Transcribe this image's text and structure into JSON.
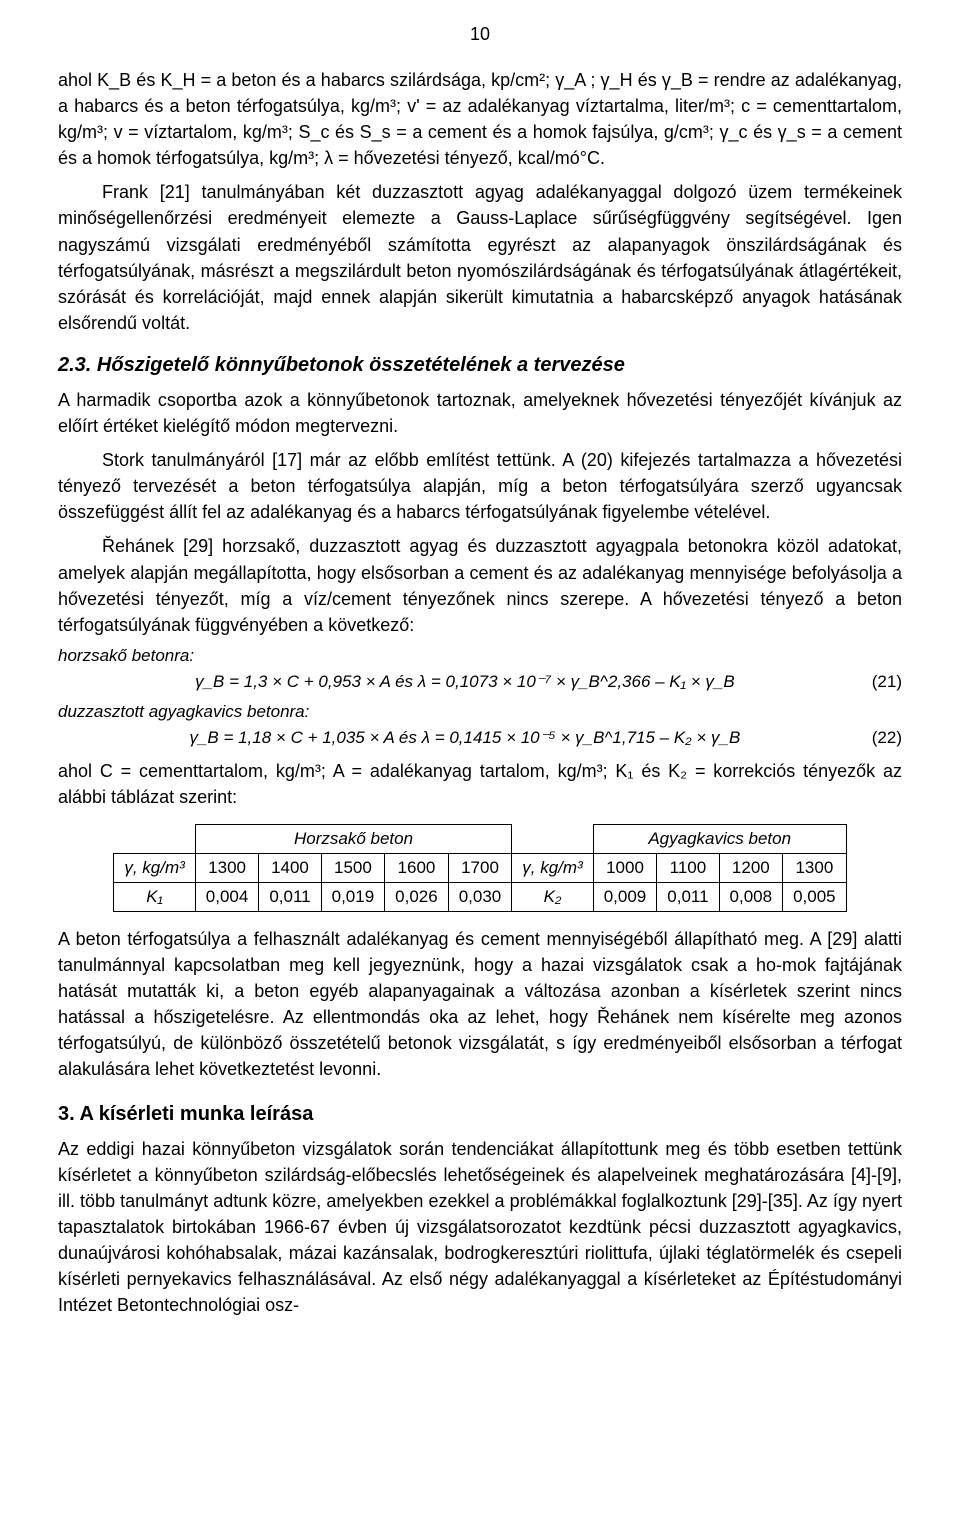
{
  "page_number": "10",
  "p1": "ahol K_B és K_H = a beton és a habarcs szilárdsága, kp/cm²; γ_A ; γ_H és γ_B = rendre az adalékanyag, a habarcs és a beton térfogatsúlya, kg/m³; v' = az adalékanyag víztartalma, liter/m³; c = cementtartalom, kg/m³; v = víztartalom, kg/m³; S_c és S_s = a cement és a homok fajsúlya, g/cm³; γ_c és γ_s = a cement és a homok térfogatsúlya, kg/m³; λ = hővezetési tényező, kcal/mó°C.",
  "p2": "Frank [21] tanulmányában két duzzasztott agyag adalékanyaggal dolgozó üzem termékeinek minőségellenőrzési eredményeit elemezte a Gauss-Laplace sűrűségfüggvény segítségével. Igen nagyszámú vizsgálati eredményéből számította egyrészt az alapanyagok önszilárdságának és térfogatsúlyának, másrészt a megszilárdult beton nyomószilárdságának és térfogatsúlyának átlagértékeit, szórását és korrelációját, majd ennek alapján sikerült kimutatnia a habarcsképző anyagok hatásának elsőrendű voltát.",
  "h_2_3": "2.3. Hőszigetelő könnyűbetonok összetételének a tervezése",
  "p3": "A harmadik csoportba azok a könnyűbetonok tartoznak, amelyeknek hővezetési tényezőjét kívánjuk az előírt értéket kielégítő módon megtervezni.",
  "p4": "Stork tanulmányáról [17] már az előbb említést tettünk. A (20) kifejezés tartalmazza a hővezetési tényező tervezését a beton térfogatsúlya alapján, míg a beton térfogatsúlyára szerző ugyancsak összefüggést állít fel az adalékanyag és a habarcs térfogatsúlyának figyelembe vételével.",
  "p5": "Řehánek [29] horzsakő, duzzasztott agyag és duzzasztott agyagpala betonokra közöl adatokat, amelyek alapján megállapította, hogy elsősorban a cement és az adalékanyag mennyisége befolyásolja a hővezetési tényezőt, míg a víz/cement tényezőnek nincs szerepe. A hővezetési tényező a beton térfogatsúlyának függvényében a következő:",
  "horzsako_label": "horzsakő betonra:",
  "eq21_body": "γ_B = 1,3 × C + 0,953 × A   és   λ = 0,1073 × 10⁻⁷ × γ_B^2,366 – K₁ × γ_B",
  "eq21_num": "(21)",
  "duzz_label": "duzzasztott agyagkavics betonra:",
  "eq22_body": "γ_B = 1,18 × C + 1,035 × A   és   λ = 0,1415 × 10⁻⁵ × γ_B^1,715 – K₂ × γ_B",
  "eq22_num": "(22)",
  "p6": "ahol C = cementtartalom, kg/m³; A = adalékanyag tartalom, kg/m³; K₁ és K₂ = korrekciós tényezők az alábbi táblázat szerint:",
  "table": {
    "left_header": "Horzsakő beton",
    "right_header": "Agyagkavics beton",
    "gamma_label": "γ, kg/m³",
    "k1_label": "K₁",
    "k2_label": "K₂",
    "left_gamma": [
      "1300",
      "1400",
      "1500",
      "1600",
      "1700"
    ],
    "left_k": [
      "0,004",
      "0,011",
      "0,019",
      "0,026",
      "0,030"
    ],
    "right_gamma": [
      "1000",
      "1100",
      "1200",
      "1300"
    ],
    "right_k": [
      "0,009",
      "0,011",
      "0,008",
      "0,005"
    ]
  },
  "p7": "A beton térfogatsúlya a felhasznált adalékanyag és cement mennyiségéből állapítható meg. A [29] alatti tanulmánnyal kapcsolatban meg kell jegyeznünk, hogy a hazai vizsgálatok csak a ho-mok fajtájának hatását mutatták ki, a beton egyéb alapanyagainak a változása azonban a kísérletek szerint nincs hatással a hőszigetelésre. Az ellentmondás oka az lehet, hogy Řehánek nem kísérelte meg azonos térfogatsúlyú, de különböző összetételű betonok vizsgálatát, s így eredményeiből elsősorban a térfogat alakulására lehet következtetést levonni.",
  "h_3": "3. A kísérleti munka leírása",
  "p8": "Az eddigi hazai könnyűbeton vizsgálatok során tendenciákat állapítottunk meg és több esetben tettünk kísérletet a könnyűbeton szilárdság-előbecslés lehetőségeinek és alapelveinek meghatározására [4]-[9], ill. több tanulmányt adtunk közre, amelyekben ezekkel a problémákkal foglalkoztunk [29]-[35]. Az így nyert tapasztalatok birtokában 1966-67 évben új vizsgálatsorozatot kezdtünk pécsi duzzasztott agyagkavics, dunaújvárosi kohóhabsalak, mázai kazánsalak, bodrogkeresztúri riolittufa, újlaki téglatörmelék és csepeli kísérleti pernyekavics felhasználásával. Az első négy adalékanyaggal a kísérleteket az Építéstudományi Intézet Betontechnológiai osz-"
}
